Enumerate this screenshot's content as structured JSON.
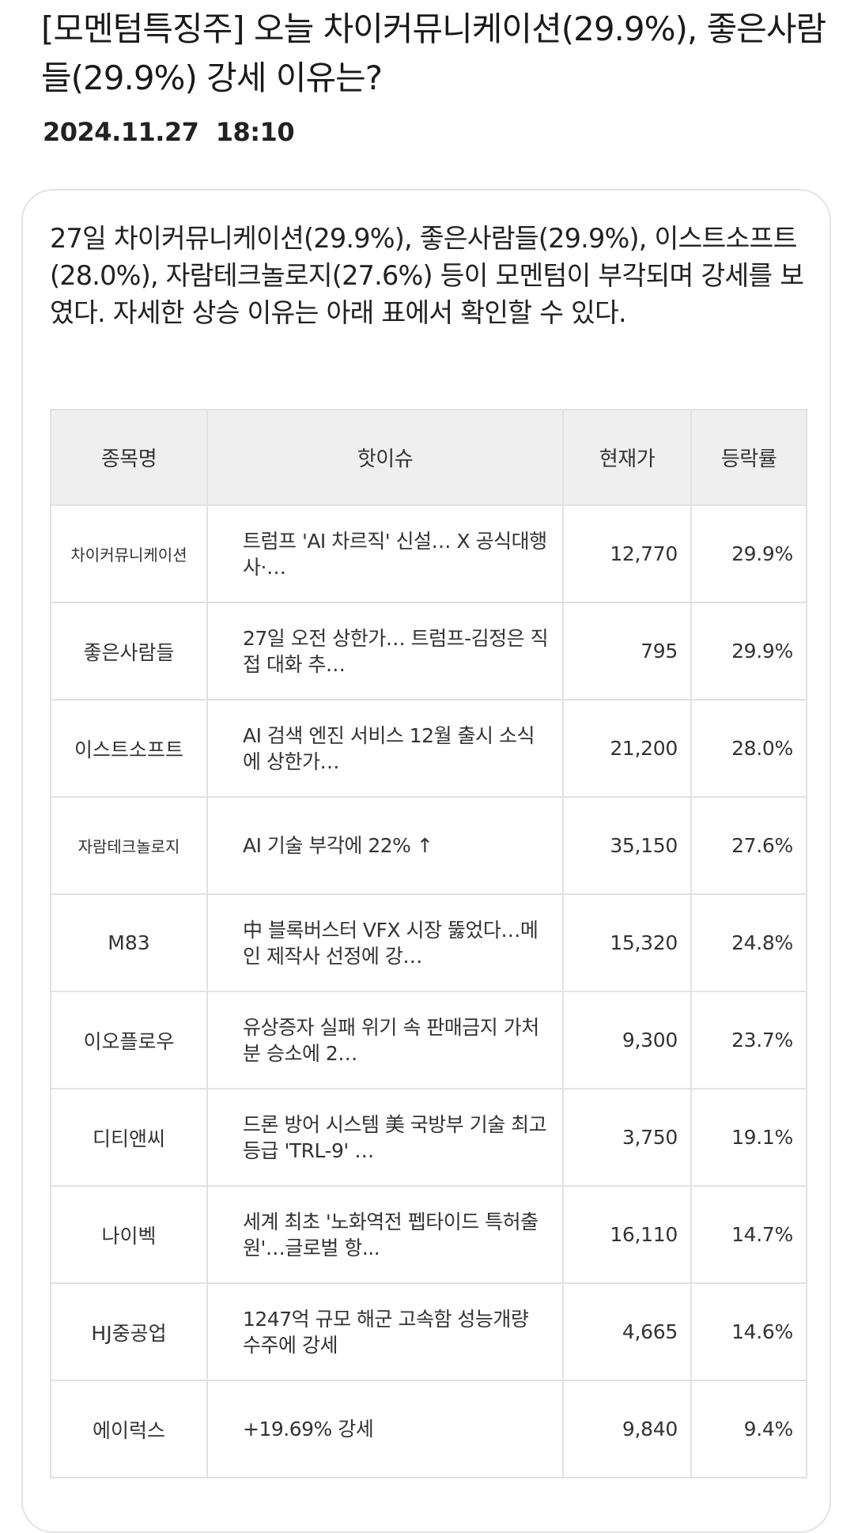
{
  "article": {
    "headline": "[모멘텀특징주] 오늘 차이커뮤니케이션(29.9%), 좋은사람들(29.9%) 강세 이유는?",
    "datetime": "2024.11.27  18:10",
    "lead": "27일 차이커뮤니케이션(29.9%), 좋은사람들(29.9%), 이스트소프트(28.0%), 자람테크놀로지(27.6%) 등이 모멘텀이 부각되며 강세를 보였다. 자세한 상승 이유는 아래 표에서 확인할 수 있다."
  },
  "table": {
    "headers": {
      "name": "종목명",
      "issue": "핫이슈",
      "price": "현재가",
      "change": "등락률"
    },
    "rows": [
      {
        "name": "차이커뮤니케이션",
        "issue": "트럼프 'AI 차르직' 신설… X 공식대행사·…",
        "price": "12,770",
        "change": "29.9%"
      },
      {
        "name": "좋은사람들",
        "issue": "27일 오전 상한가… 트럼프-김정은 직접 대화 추…",
        "price": "795",
        "change": "29.9%"
      },
      {
        "name": "이스트소프트",
        "issue": "AI 검색 엔진 서비스 12월 출시 소식에 상한가…",
        "price": "21,200",
        "change": "28.0%"
      },
      {
        "name": "자람테크놀로지",
        "issue": "AI 기술 부각에 22% ↑",
        "price": "35,150",
        "change": "27.6%"
      },
      {
        "name": "M83",
        "issue": "中 블록버스터 VFX 시장 뚫었다…메인 제작사 선정에 강…",
        "price": "15,320",
        "change": "24.8%"
      },
      {
        "name": "이오플로우",
        "issue": "유상증자 실패 위기 속 판매금지 가처분 승소에 2…",
        "price": "9,300",
        "change": "23.7%"
      },
      {
        "name": "디티앤씨",
        "issue": "드론 방어 시스템 美 국방부 기술 최고 등급 'TRL-9' …",
        "price": "3,750",
        "change": "19.1%"
      },
      {
        "name": "나이벡",
        "issue": "세계 최초 '노화역전 펩타이드 특허출원'…글로벌 항...",
        "price": "16,110",
        "change": "14.7%"
      },
      {
        "name": "HJ중공업",
        "issue": "1247억 규모 해군 고속함 성능개량 수주에 강세",
        "price": "4,665",
        "change": "14.6%"
      },
      {
        "name": "에이럭스",
        "issue": "+19.69% 강세",
        "price": "9,840",
        "change": "9.4%"
      }
    ]
  },
  "colors": {
    "rise": "#c0392b",
    "header_bg": "#efefef",
    "border": "#e2e2e2"
  }
}
